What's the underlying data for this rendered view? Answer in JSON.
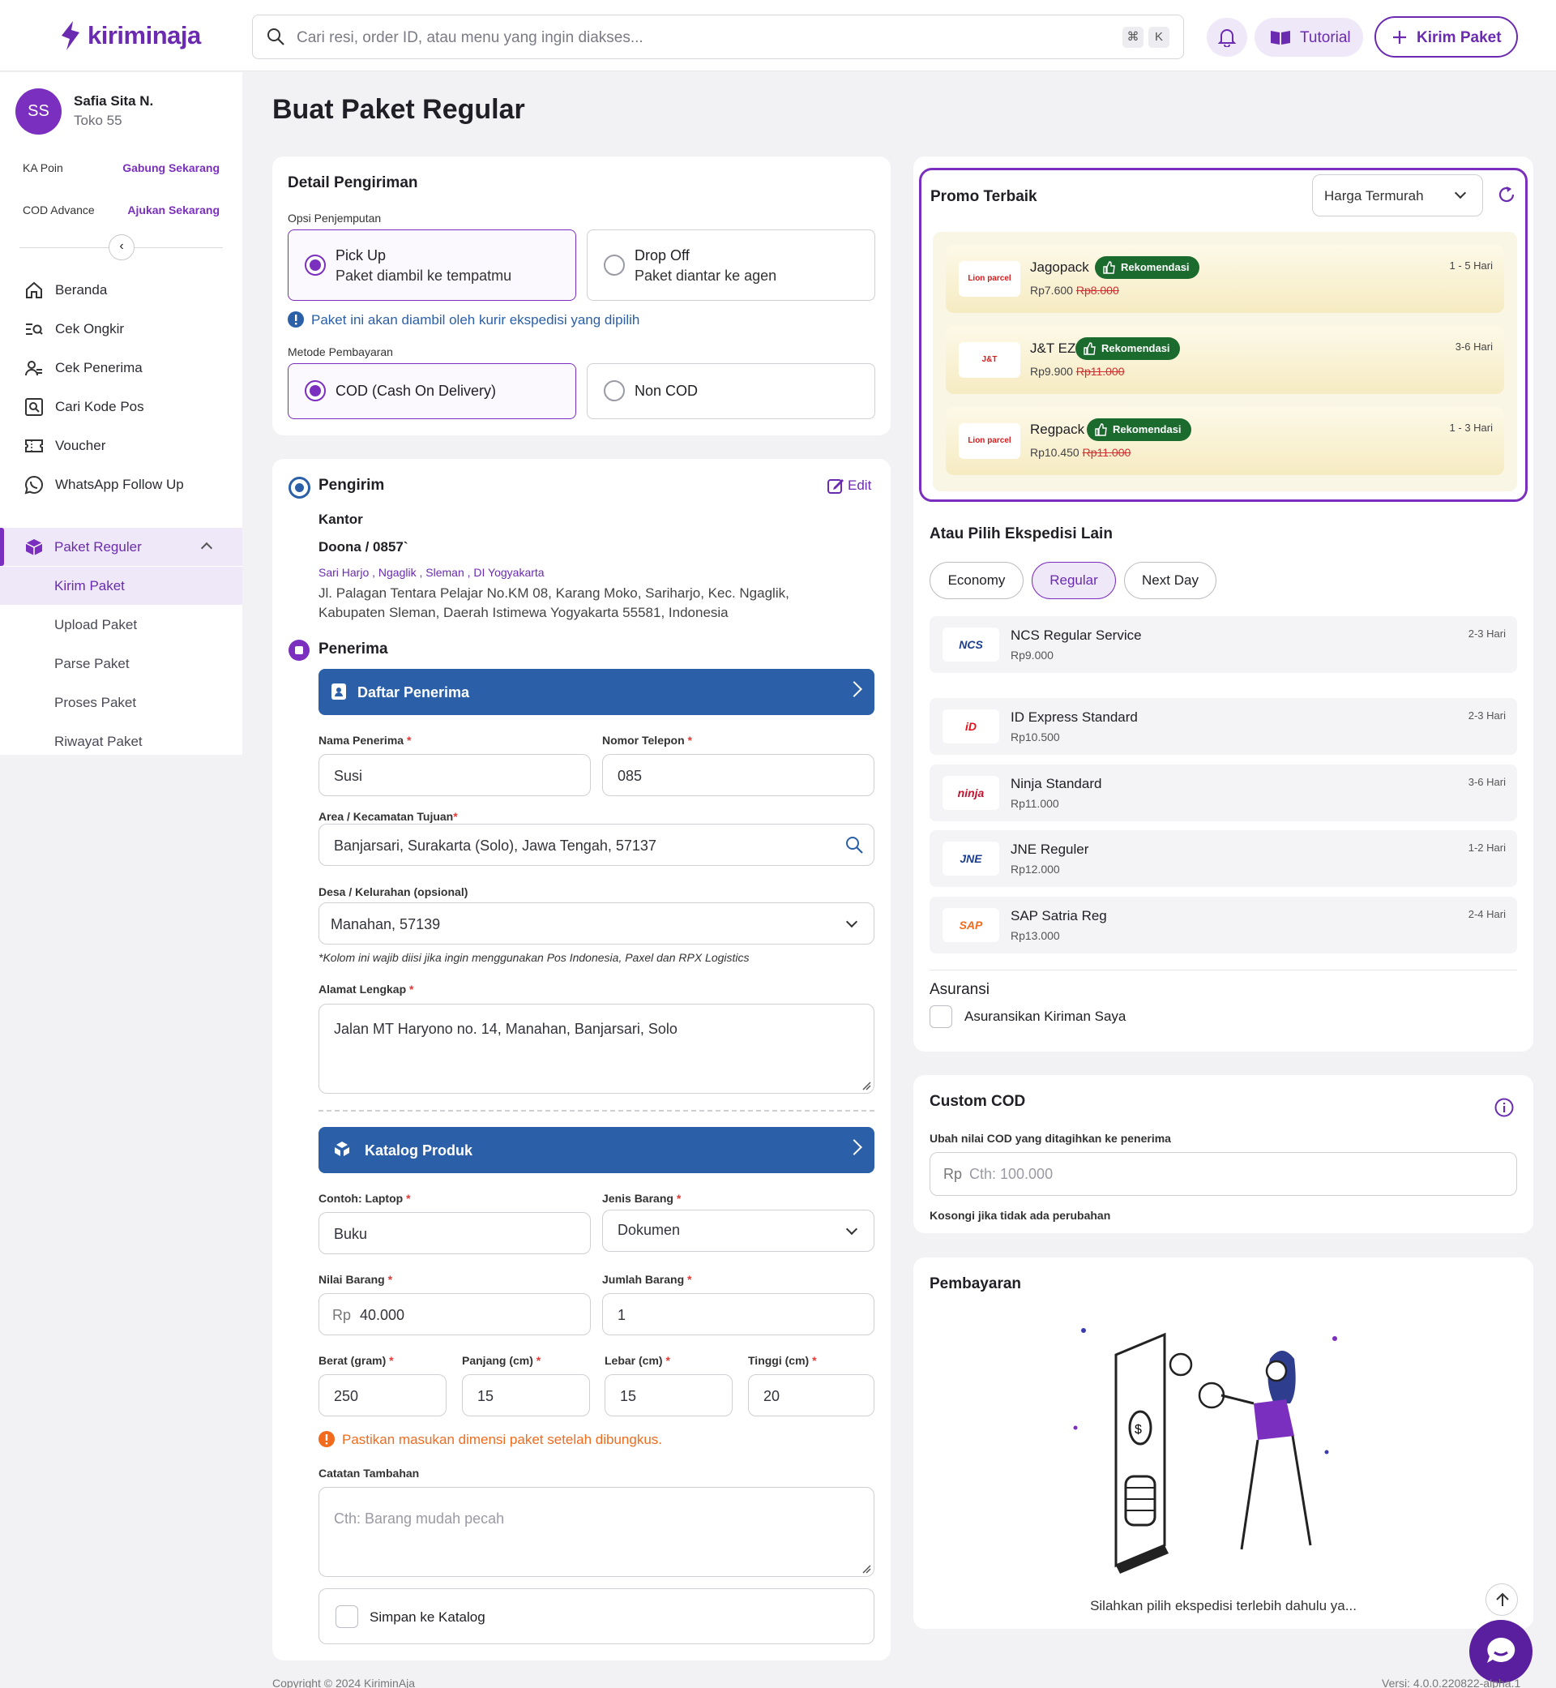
{
  "brand": {
    "name": "kiriminaja",
    "color": "#6a2bb0"
  },
  "header": {
    "search_placeholder": "Cari resi, order ID, atau menu yang ingin diakses...",
    "kbd1": "⌘",
    "kbd2": "K",
    "tutorial": "Tutorial",
    "kirim": "Kirim Paket"
  },
  "user": {
    "initials": "SS",
    "name": "Safia Sita N.",
    "shop": "Toko 55",
    "ka_poin": "KA Poin",
    "ka_poin_link": "Gabung Sekarang",
    "cod_adv": "COD Advance",
    "cod_adv_link": "Ajukan Sekarang"
  },
  "nav": [
    {
      "label": "Beranda",
      "icon": "home-icon"
    },
    {
      "label": "Cek Ongkir",
      "icon": "search-list-icon"
    },
    {
      "label": "Cek Penerima",
      "icon": "user-check-icon"
    },
    {
      "label": "Cari Kode Pos",
      "icon": "zoom-box-icon"
    },
    {
      "label": "Voucher",
      "icon": "ticket-icon"
    },
    {
      "label": "WhatsApp Follow Up",
      "icon": "whatsapp-icon"
    }
  ],
  "paket": {
    "label": "Paket Reguler",
    "sub": [
      "Kirim Paket",
      "Upload Paket",
      "Parse Paket",
      "Proses Paket",
      "Riwayat Paket"
    ]
  },
  "page_title": "Buat Paket Regular",
  "detail": {
    "title": "Detail Pengiriman",
    "opsi_label": "Opsi Penjemputan",
    "pickup_t": "Pick Up",
    "pickup_s": "Paket diambil ke tempatmu",
    "drop_t": "Drop Off",
    "drop_s": "Paket diantar ke agen",
    "info": "Paket ini akan diambil oleh kurir ekspedisi yang dipilih",
    "metode_label": "Metode Pembayaran",
    "cod": "COD (Cash On Delivery)",
    "noncod": "Non COD"
  },
  "pengirim": {
    "title": "Pengirim",
    "edit": "Edit",
    "place": "Kantor",
    "name": "Doona / 0857`",
    "area": "Sari Harjo , Ngaglik , Sleman , DI Yogyakarta",
    "address1": "Jl. Palagan Tentara Pelajar No.KM 08, Karang Moko, Sariharjo, Kec. Ngaglik,",
    "address2": "Kabupaten Sleman, Daerah Istimewa Yogyakarta 55581, Indonesia"
  },
  "penerima": {
    "title": "Penerima",
    "daftar": "Daftar Penerima",
    "nama_label": "Nama Penerima",
    "nama": "Susi",
    "telp_label": "Nomor Telepon",
    "telp": "085",
    "area_label": "Area / Kecamatan Tujuan",
    "area": "Banjarsari, Surakarta (Solo), Jawa Tengah, 57137",
    "desa_label": "Desa / Kelurahan (opsional)",
    "desa": "Manahan, 57139",
    "desa_note": "*Kolom ini wajib diisi jika ingin menggunakan Pos Indonesia, Paxel dan RPX Logistics",
    "alamat_label": "Alamat Lengkap",
    "alamat": "Jalan MT Haryono no. 14, Manahan, Banjarsari, Solo"
  },
  "produk": {
    "katalog": "Katalog Produk",
    "contoh_label": "Contoh: Laptop",
    "contoh": "Buku",
    "jenis_label": "Jenis Barang",
    "jenis": "Dokumen",
    "nilai_label": "Nilai Barang",
    "rp": "Rp",
    "nilai": "40.000",
    "jumlah_label": "Jumlah Barang",
    "jumlah": "1",
    "berat_label": "Berat (gram)",
    "berat": "250",
    "panjang_label": "Panjang (cm)",
    "panjang": "15",
    "lebar_label": "Lebar (cm)",
    "lebar": "15",
    "tinggi_label": "Tinggi (cm)",
    "tinggi": "20",
    "warning": "Pastikan masukan dimensi paket setelah dibungkus.",
    "catatan_label": "Catatan Tambahan",
    "catatan_ph": "Cth: Barang mudah pecah",
    "simpan": "Simpan ke Katalog"
  },
  "promo": {
    "title": "Promo Terbaik",
    "sort": "Harga Termurah",
    "items": [
      {
        "name": "Jagopack",
        "badge": "Rekomendasi",
        "price": "Rp7.600",
        "old": "Rp8.000",
        "days": "1 - 5 Hari",
        "logo": "Lion parcel"
      },
      {
        "name": "J&T EZ",
        "badge": "Rekomendasi",
        "price": "Rp9.900",
        "old": "Rp11.000",
        "days": "3-6 Hari",
        "logo": "J&T"
      },
      {
        "name": "Regpack",
        "badge": "Rekomendasi",
        "price": "Rp10.450",
        "old": "Rp11.000",
        "days": "1 - 3 Hari",
        "logo": "Lion parcel"
      }
    ]
  },
  "lain": {
    "title": "Atau Pilih Ekspedisi Lain",
    "tabs": [
      "Economy",
      "Regular",
      "Next Day"
    ],
    "items": [
      {
        "name": "NCS Regular Service",
        "price": "Rp9.000",
        "days": "2-3 Hari",
        "logo": "NCS"
      },
      {
        "name": "ID Express Standard",
        "price": "Rp10.500",
        "days": "2-3 Hari",
        "logo": "iD"
      },
      {
        "name": "Ninja Standard",
        "price": "Rp11.000",
        "days": "3-6 Hari",
        "logo": "ninja"
      },
      {
        "name": "JNE Reguler",
        "price": "Rp12.000",
        "days": "1-2 Hari",
        "logo": "JNE"
      },
      {
        "name": "SAP Satria Reg",
        "price": "Rp13.000",
        "days": "2-4 Hari",
        "logo": "SAP"
      }
    ]
  },
  "asuransi": {
    "title": "Asuransi",
    "label": "Asuransikan Kiriman Saya"
  },
  "custom": {
    "title": "Custom COD",
    "sub": "Ubah nilai COD yang ditagihkan ke penerima",
    "rp": "Rp",
    "ph": "Cth: 100.000",
    "note": "Kosongi jika tidak ada perubahan"
  },
  "bayar": {
    "title": "Pembayaran",
    "msg": "Silahkan pilih ekspedisi terlebih dahulu ya..."
  },
  "footer": {
    "copy": "Copyright © 2024 KiriminAja",
    "version": "Versi: 4.0.0.220822-alpha.1"
  }
}
